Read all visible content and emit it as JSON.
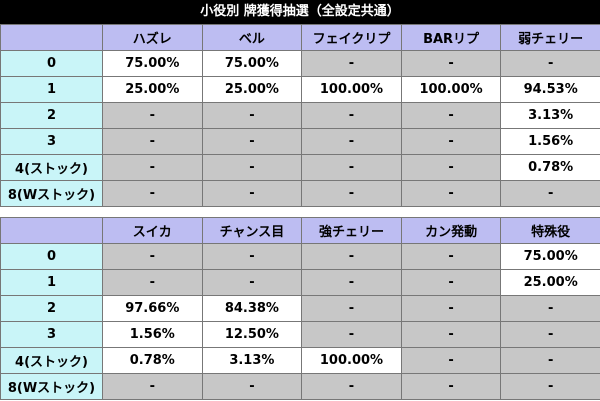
{
  "title": "小役別 牌獲得抽選（全設定共通）",
  "table1": {
    "headers": [
      "",
      "ハズレ",
      "ベル",
      "フェイクリプ",
      "BARリプ",
      "弱チェリー"
    ],
    "rows": [
      {
        "label": "0",
        "cells": [
          "75.00%",
          "75.00%",
          "-",
          "-",
          "-"
        ]
      },
      {
        "label": "1",
        "cells": [
          "25.00%",
          "25.00%",
          "100.00%",
          "100.00%",
          "94.53%"
        ]
      },
      {
        "label": "2",
        "cells": [
          "-",
          "-",
          "-",
          "-",
          "3.13%"
        ]
      },
      {
        "label": "3",
        "cells": [
          "-",
          "-",
          "-",
          "-",
          "1.56%"
        ]
      },
      {
        "label": "4(ストック)",
        "cells": [
          "-",
          "-",
          "-",
          "-",
          "0.78%"
        ]
      },
      {
        "label": "8(Wストック)",
        "cells": [
          "-",
          "-",
          "-",
          "-",
          "-"
        ]
      }
    ]
  },
  "table2": {
    "headers": [
      "",
      "スイカ",
      "チャンス目",
      "強チェリー",
      "カン発動",
      "特殊役"
    ],
    "rows": [
      {
        "label": "0",
        "cells": [
          "-",
          "-",
          "-",
          "-",
          "75.00%"
        ]
      },
      {
        "label": "1",
        "cells": [
          "-",
          "-",
          "-",
          "-",
          "25.00%"
        ]
      },
      {
        "label": "2",
        "cells": [
          "97.66%",
          "84.38%",
          "-",
          "-",
          "-"
        ]
      },
      {
        "label": "3",
        "cells": [
          "1.56%",
          "12.50%",
          "-",
          "-",
          "-"
        ]
      },
      {
        "label": "4(ストック)",
        "cells": [
          "0.78%",
          "3.13%",
          "100.00%",
          "-",
          "-"
        ]
      },
      {
        "label": "8(Wストック)",
        "cells": [
          "-",
          "-",
          "-",
          "-",
          "-"
        ]
      }
    ]
  },
  "colors": {
    "title_bg": "#000000",
    "header_bg": "#bdbdf2",
    "row_label_bg": "#c9f5f8",
    "value_bg": "#ffffff",
    "empty_bg": "#c7c7c7"
  }
}
